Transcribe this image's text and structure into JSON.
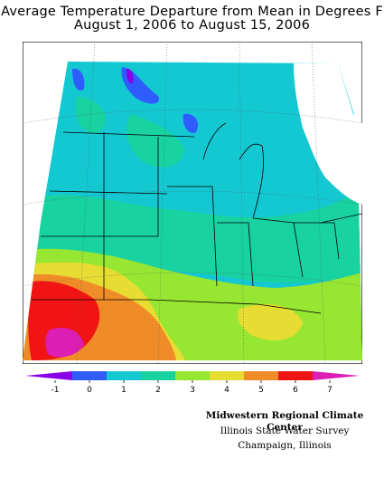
{
  "title": {
    "line1": "Average Temperature Departure from Mean in Degrees F",
    "line2": "August 1, 2006 to August 15, 2006"
  },
  "legend": {
    "ticks": [
      "-1",
      "0",
      "1",
      "2",
      "3",
      "4",
      "5",
      "6",
      "7"
    ],
    "colors": [
      "#8a00e6",
      "#2e5cff",
      "#14c8d2",
      "#18d2a0",
      "#96e632",
      "#e6dc32",
      "#f08c28",
      "#f01414",
      "#dc1eb4"
    ]
  },
  "credit": {
    "line1": "Midwestern Regional Climate Center",
    "line2": "Illinois State Water Survey",
    "line3": "Champaign, Illinois"
  }
}
